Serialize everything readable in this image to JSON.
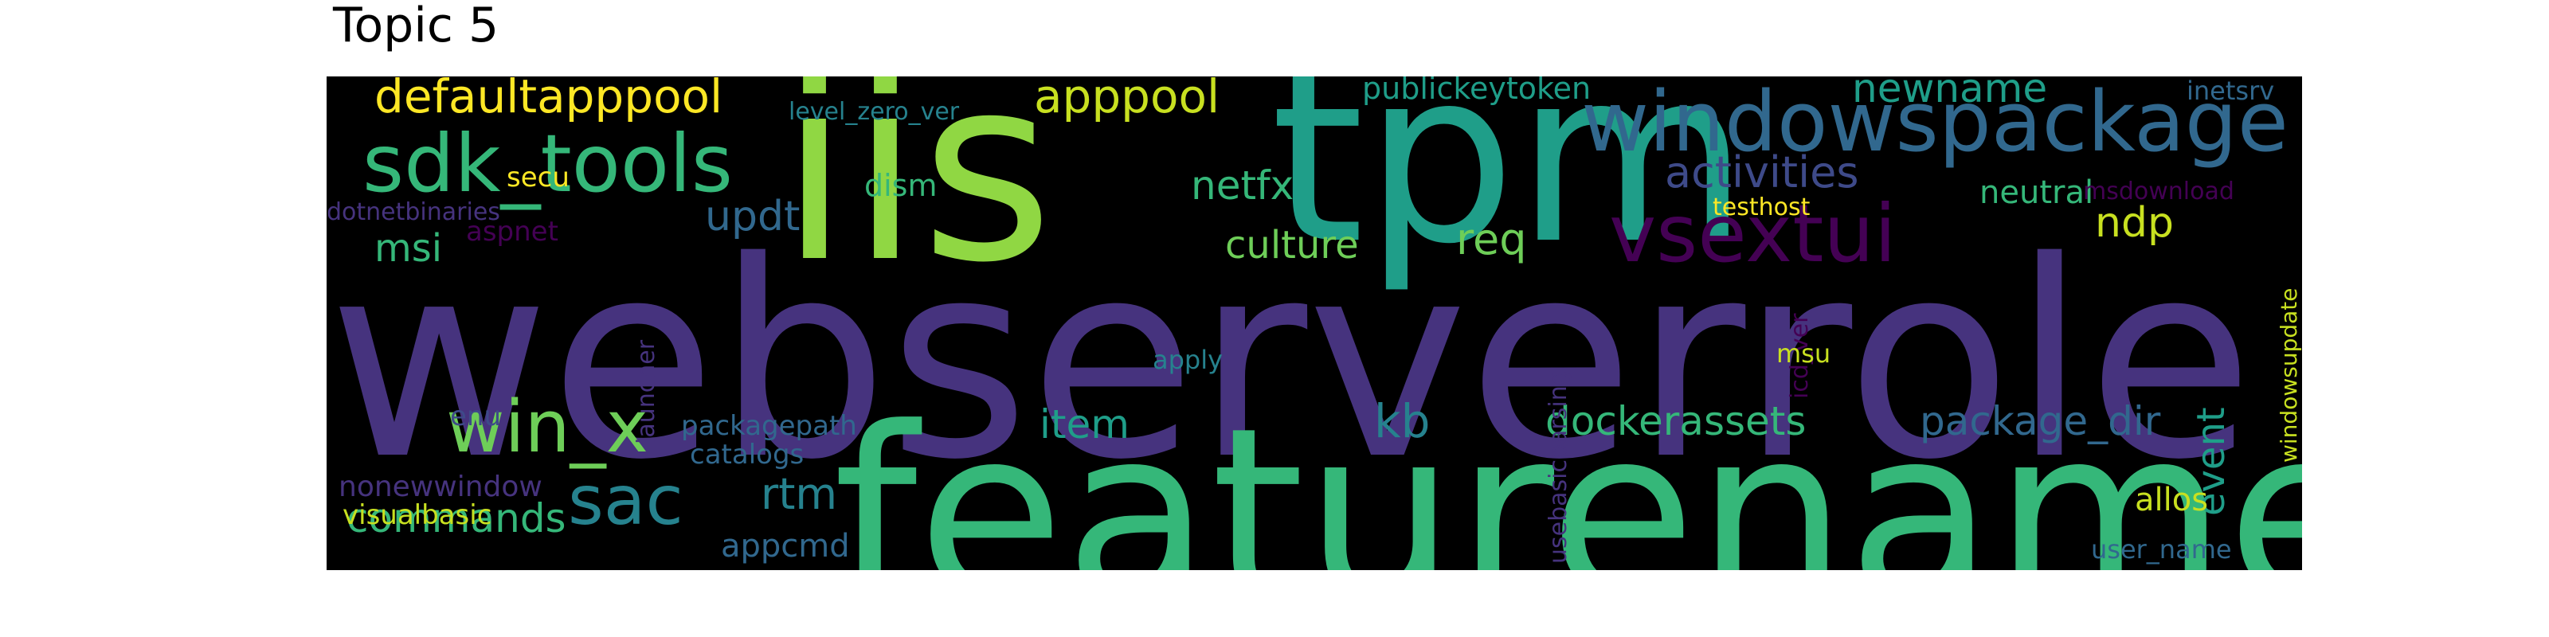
{
  "title": "Topic 5",
  "background": "#000000",
  "palette": {
    "dark_purple": "#46337e",
    "deep_purple": "#440154",
    "indigo": "#3e4a89",
    "blue": "#31688e",
    "teal": "#26828e",
    "teal_green": "#1f9e89",
    "green": "#35b779",
    "light_green": "#6ece58",
    "lime": "#90d743",
    "yellow": "#c8e020",
    "bright_yellow": "#fde725"
  },
  "words": [
    {
      "id": "webserverrole",
      "text": "webserverrole",
      "color": "#46337e"
    },
    {
      "id": "featurename",
      "text": "featurename",
      "color": "#35b779"
    },
    {
      "id": "iis",
      "text": "iis",
      "color": "#90d743"
    },
    {
      "id": "tpm",
      "text": "tpm",
      "color": "#1f9e89"
    },
    {
      "id": "windowspackage",
      "text": "windowspackage",
      "color": "#31688e"
    },
    {
      "id": "vsextui",
      "text": "vsextui",
      "color": "#440154"
    },
    {
      "id": "sdk_tools",
      "text": "sdk_tools",
      "color": "#35b779"
    },
    {
      "id": "win_x",
      "text": "win_x",
      "color": "#6ece58"
    },
    {
      "id": "sac",
      "text": "sac",
      "color": "#26828e"
    },
    {
      "id": "defaultapppool",
      "text": "defaultapppool",
      "color": "#fde725"
    },
    {
      "id": "apppool",
      "text": "apppool",
      "color": "#c8e020"
    },
    {
      "id": "newname",
      "text": "newname",
      "color": "#1f9e89"
    },
    {
      "id": "activities",
      "text": "activities",
      "color": "#3e4a89"
    },
    {
      "id": "dockerassets",
      "text": "dockerassets",
      "color": "#35b779"
    },
    {
      "id": "package_dir",
      "text": "package_dir",
      "color": "#31688e"
    },
    {
      "id": "commands",
      "text": "commands",
      "color": "#35b779"
    },
    {
      "id": "item",
      "text": "item",
      "color": "#1f9e89"
    },
    {
      "id": "kb",
      "text": "kb",
      "color": "#26828e"
    },
    {
      "id": "rtm",
      "text": "rtm",
      "color": "#26828e"
    },
    {
      "id": "updt",
      "text": "updt",
      "color": "#31688e"
    },
    {
      "id": "netfx",
      "text": "netfx",
      "color": "#35b779"
    },
    {
      "id": "culture",
      "text": "culture",
      "color": "#6ece58"
    },
    {
      "id": "req",
      "text": "req",
      "color": "#6ece58"
    },
    {
      "id": "ndp",
      "text": "ndp",
      "color": "#c8e020"
    },
    {
      "id": "msi",
      "text": "msi",
      "color": "#35b779"
    },
    {
      "id": "event",
      "text": "event",
      "color": "#1f9e89"
    },
    {
      "id": "publickeytoken",
      "text": "publickeytoken",
      "color": "#1f9e89"
    },
    {
      "id": "neutral",
      "text": "neutral",
      "color": "#35b779"
    },
    {
      "id": "allos",
      "text": "allos",
      "color": "#c8e020"
    },
    {
      "id": "dism",
      "text": "dism",
      "color": "#35b779"
    },
    {
      "id": "level_zero_ver",
      "text": "level_zero_ver",
      "color": "#26828e"
    },
    {
      "id": "inetsrv",
      "text": "inetsrv",
      "color": "#31688e"
    },
    {
      "id": "testhost",
      "text": "testhost",
      "color": "#fde725"
    },
    {
      "id": "msdownload",
      "text": "msdownload",
      "color": "#440154"
    },
    {
      "id": "dotnetbinaries",
      "text": "dotnetbinaries",
      "color": "#46337e"
    },
    {
      "id": "aspnet",
      "text": "aspnet",
      "color": "#440154"
    },
    {
      "id": "secu",
      "text": "secu",
      "color": "#fde725"
    },
    {
      "id": "launcher",
      "text": "launcher",
      "color": "#46337e"
    },
    {
      "id": "apply",
      "text": "apply",
      "color": "#26828e"
    },
    {
      "id": "usebasicparsing",
      "text": "usebasicparsing",
      "color": "#46337e"
    },
    {
      "id": "icd_ver",
      "text": "icd_ver",
      "color": "#440154"
    },
    {
      "id": "msu",
      "text": "msu",
      "color": "#c8e020"
    },
    {
      "id": "windowsupdate",
      "text": "windowsupdate",
      "color": "#c8e020"
    },
    {
      "id": "enu",
      "text": "enu",
      "color": "#3e4a89"
    },
    {
      "id": "packagepath",
      "text": "packagepath",
      "color": "#31688e"
    },
    {
      "id": "catalogs",
      "text": "catalogs",
      "color": "#31688e"
    },
    {
      "id": "nonewwindow",
      "text": "nonewwindow",
      "color": "#46337e"
    },
    {
      "id": "visualbasic",
      "text": "visualbasic",
      "color": "#c8e020"
    },
    {
      "id": "appcmd",
      "text": "appcmd",
      "color": "#31688e"
    },
    {
      "id": "user_name",
      "text": "user_name",
      "color": "#31688e"
    }
  ]
}
